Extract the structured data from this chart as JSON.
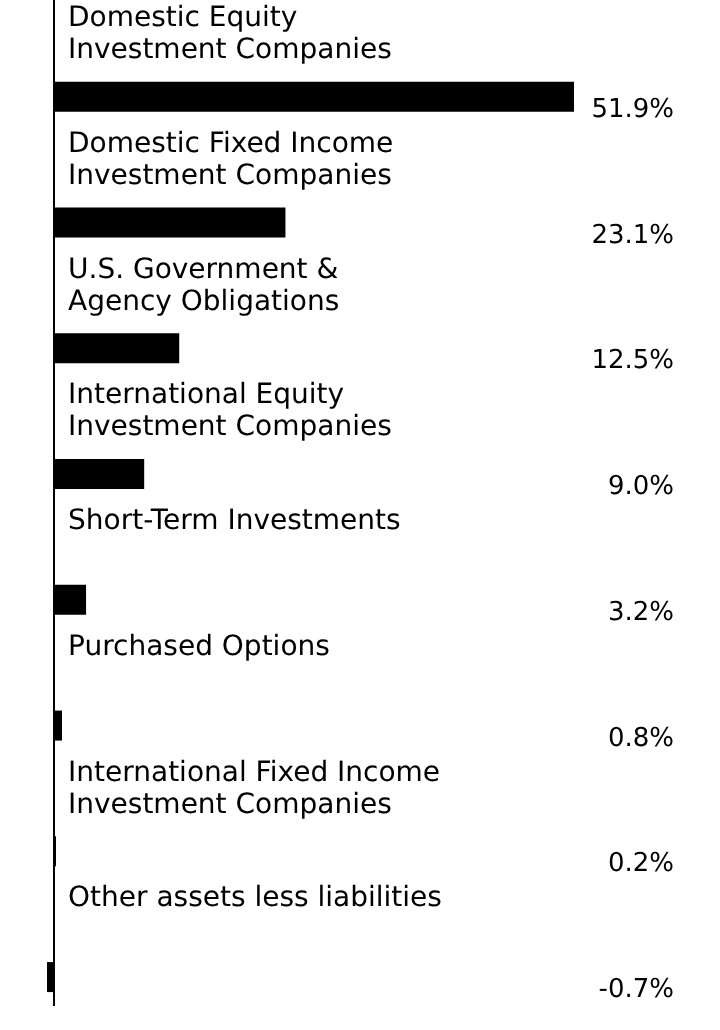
{
  "chart_data": {
    "type": "bar",
    "orientation": "horizontal",
    "categories": [
      "Domestic Equity\nInvestment Companies",
      "Domestic Fixed Income\nInvestment Companies",
      "U.S. Government &\nAgency Obligations",
      "International Equity\nInvestment Companies",
      "Short-Term Investments",
      "Purchased Options",
      "International Fixed Income\nInvestment Companies",
      "Other assets less liabilities"
    ],
    "values": [
      51.9,
      23.1,
      12.5,
      9.0,
      3.2,
      0.8,
      0.2,
      -0.7
    ],
    "value_labels": [
      "51.9%",
      "23.1%",
      "12.5%",
      "9.0%",
      "3.2%",
      "0.8%",
      "0.2%",
      "-0.7%"
    ],
    "color": "#000000"
  }
}
